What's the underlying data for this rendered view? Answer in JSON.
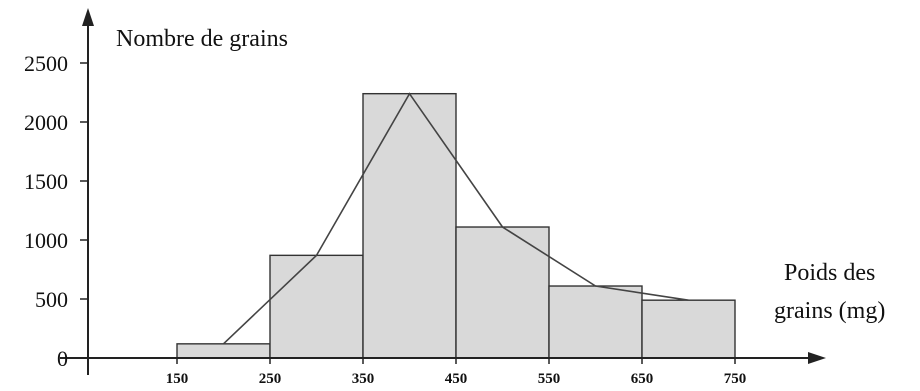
{
  "chart_data": {
    "type": "bar",
    "title": "",
    "ylabel": "Nombre de grains",
    "xlabel_lines": [
      "Poids des",
      "grains (mg)"
    ],
    "class_edges": [
      150,
      250,
      350,
      450,
      550,
      650,
      750
    ],
    "values": [
      120,
      870,
      2240,
      1110,
      610,
      490
    ],
    "polygon": {
      "x": [
        200,
        300,
        400,
        500,
        600,
        700
      ],
      "y": [
        120,
        870,
        2240,
        1110,
        610,
        490
      ]
    },
    "ylim": [
      0,
      2500
    ],
    "yticks": [
      0,
      500,
      1000,
      1500,
      2000,
      2500
    ],
    "xticks": [
      150,
      250,
      350,
      450,
      550,
      650,
      750
    ],
    "grid": false,
    "legend": "none"
  }
}
